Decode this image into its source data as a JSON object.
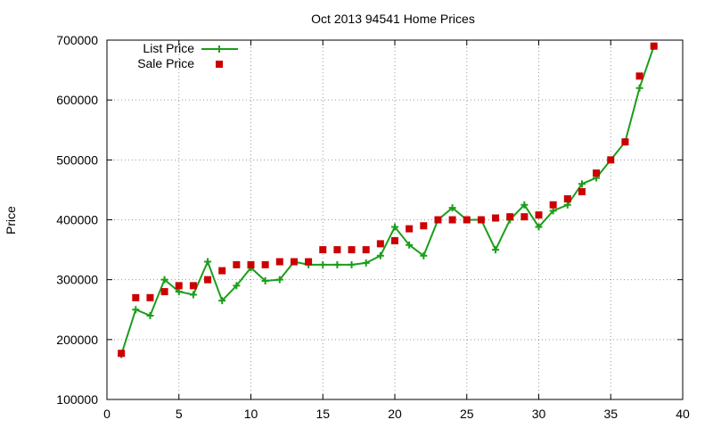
{
  "chart_data": {
    "type": "line",
    "title": "Oct 2013 94541 Home Prices",
    "xlabel": "",
    "ylabel": "Price",
    "xlim": [
      0,
      40
    ],
    "ylim": [
      100000,
      700000
    ],
    "xticks": [
      0,
      5,
      10,
      15,
      20,
      25,
      30,
      35,
      40
    ],
    "yticks": [
      100000,
      200000,
      300000,
      400000,
      500000,
      600000,
      700000
    ],
    "grid": true,
    "legend_position": "top-left",
    "series": [
      {
        "name": "List Price",
        "style": "line-plus",
        "color": "#1a9e1a",
        "x": [
          1,
          2,
          3,
          4,
          5,
          6,
          7,
          8,
          9,
          10,
          11,
          12,
          13,
          14,
          15,
          16,
          17,
          18,
          19,
          20,
          21,
          22,
          23,
          24,
          25,
          26,
          27,
          28,
          29,
          30,
          31,
          32,
          33,
          34,
          35,
          36,
          37,
          38
        ],
        "values": [
          175000,
          250000,
          240000,
          300000,
          280000,
          275000,
          330000,
          265000,
          290000,
          320000,
          298000,
          300000,
          330000,
          325000,
          325000,
          325000,
          325000,
          328000,
          340000,
          388000,
          358000,
          340000,
          400000,
          420000,
          400000,
          400000,
          350000,
          400000,
          425000,
          388000,
          415000,
          425000,
          460000,
          470000,
          500000,
          530000,
          620000,
          690000
        ]
      },
      {
        "name": "Sale Price",
        "style": "marker-square",
        "color": "#cc0000",
        "x": [
          1,
          2,
          3,
          4,
          5,
          6,
          7,
          8,
          9,
          10,
          11,
          12,
          13,
          14,
          15,
          16,
          17,
          18,
          19,
          20,
          21,
          22,
          23,
          24,
          25,
          26,
          27,
          28,
          29,
          30,
          31,
          32,
          33,
          34,
          35,
          36,
          37,
          38
        ],
        "values": [
          177000,
          270000,
          270000,
          280000,
          290000,
          290000,
          300000,
          315000,
          325000,
          325000,
          325000,
          330000,
          330000,
          330000,
          350000,
          350000,
          350000,
          350000,
          360000,
          365000,
          385000,
          390000,
          400000,
          400000,
          400000,
          400000,
          403000,
          405000,
          405000,
          408000,
          425000,
          435000,
          447000,
          478000,
          500000,
          530000,
          640000,
          690000
        ]
      }
    ]
  }
}
